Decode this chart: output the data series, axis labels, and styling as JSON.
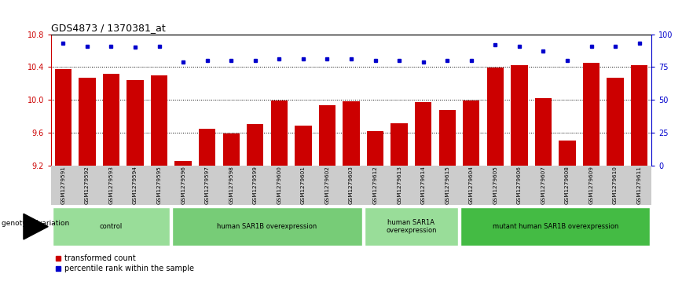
{
  "title": "GDS4873 / 1370381_at",
  "samples": [
    "GSM1279591",
    "GSM1279592",
    "GSM1279593",
    "GSM1279594",
    "GSM1279595",
    "GSM1279596",
    "GSM1279597",
    "GSM1279598",
    "GSM1279599",
    "GSM1279600",
    "GSM1279601",
    "GSM1279602",
    "GSM1279603",
    "GSM1279612",
    "GSM1279613",
    "GSM1279614",
    "GSM1279615",
    "GSM1279604",
    "GSM1279605",
    "GSM1279606",
    "GSM1279607",
    "GSM1279608",
    "GSM1279609",
    "GSM1279610",
    "GSM1279611"
  ],
  "bar_values": [
    10.37,
    10.27,
    10.32,
    10.24,
    10.3,
    9.25,
    9.65,
    9.59,
    9.7,
    9.99,
    9.68,
    9.93,
    9.98,
    9.62,
    9.71,
    9.97,
    9.88,
    9.99,
    10.39,
    10.42,
    10.02,
    9.5,
    10.45,
    10.27,
    10.42
  ],
  "percentile_values": [
    93,
    91,
    91,
    90,
    91,
    79,
    80,
    80,
    80,
    81,
    81,
    81,
    81,
    80,
    80,
    79,
    80,
    80,
    92,
    91,
    87,
    80,
    91,
    91,
    93
  ],
  "ylim_left": [
    9.2,
    10.8
  ],
  "ylim_right": [
    0,
    100
  ],
  "yticks_left": [
    9.2,
    9.6,
    10.0,
    10.4,
    10.8
  ],
  "yticks_right": [
    0,
    25,
    50,
    75,
    100
  ],
  "bar_color": "#cc0000",
  "dot_color": "#0000cc",
  "groups": [
    {
      "label": "control",
      "start": 0,
      "end": 5,
      "color": "#99dd99"
    },
    {
      "label": "human SAR1B overexpression",
      "start": 5,
      "end": 13,
      "color": "#77cc77"
    },
    {
      "label": "human SAR1A\noverexpression",
      "start": 13,
      "end": 17,
      "color": "#99dd99"
    },
    {
      "label": "mutant human SAR1B overexpression",
      "start": 17,
      "end": 25,
      "color": "#44bb44"
    }
  ],
  "genotype_label": "genotype/variation",
  "legend_bar_label": "transformed count",
  "legend_dot_label": "percentile rank within the sample",
  "axis_color_left": "#cc0000",
  "axis_color_right": "#0000cc",
  "tick_bg_color": "#cccccc"
}
